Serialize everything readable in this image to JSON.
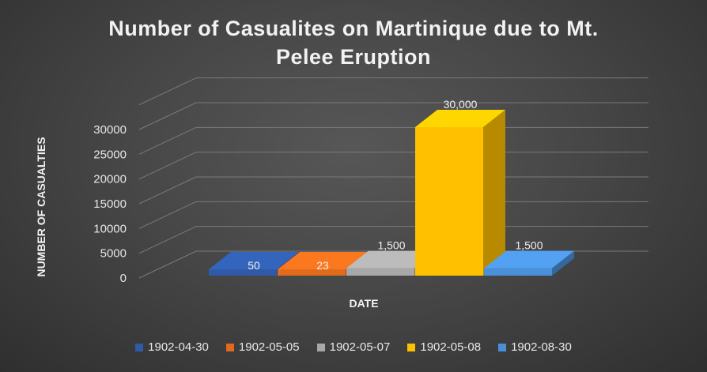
{
  "chart_data": {
    "type": "bar",
    "title_lines": [
      "Number of Casualites on Martinique due to Mt.",
      "Pelee Eruption"
    ],
    "xlabel": "DATE",
    "ylabel": "NUMBER OF CASUALTIES",
    "categories": [
      "1902-04-30",
      "1902-05-05",
      "1902-05-07",
      "1902-05-08",
      "1902-08-30"
    ],
    "values": [
      50,
      23,
      1500,
      30000,
      1500
    ],
    "data_labels": [
      "50",
      "23",
      "1,500",
      "30,000",
      "1,500"
    ],
    "yticks": [
      "0",
      "5000",
      "10000",
      "15000",
      "20000",
      "25000",
      "30000"
    ],
    "ylim": [
      0,
      35000
    ],
    "grid": true,
    "legend": "bottom",
    "colors": [
      "#2e5aa8",
      "#e06b1c",
      "#a8a8a8",
      "#ffc000",
      "#4a90d9"
    ]
  }
}
